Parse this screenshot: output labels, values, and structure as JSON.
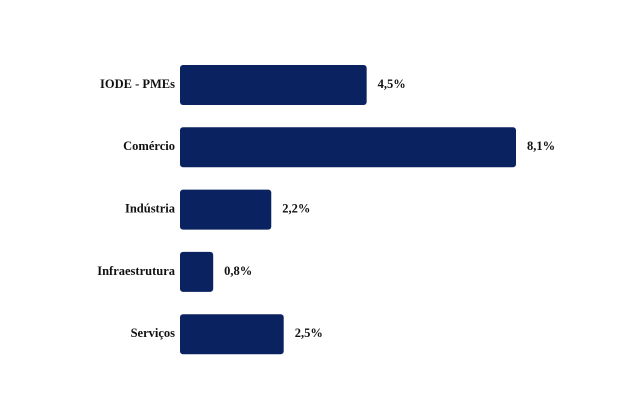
{
  "chart_data": {
    "type": "bar",
    "orientation": "horizontal",
    "categories": [
      "IODE - PMEs",
      "Comércio",
      "Indústria",
      "Infraestrutura",
      "Serviços"
    ],
    "values": [
      4.5,
      8.1,
      2.2,
      0.8,
      2.5
    ],
    "value_labels": [
      "4,5%",
      "8,1%",
      "2,2%",
      "0,8%",
      "2,5%"
    ],
    "color": "#0b2260"
  }
}
